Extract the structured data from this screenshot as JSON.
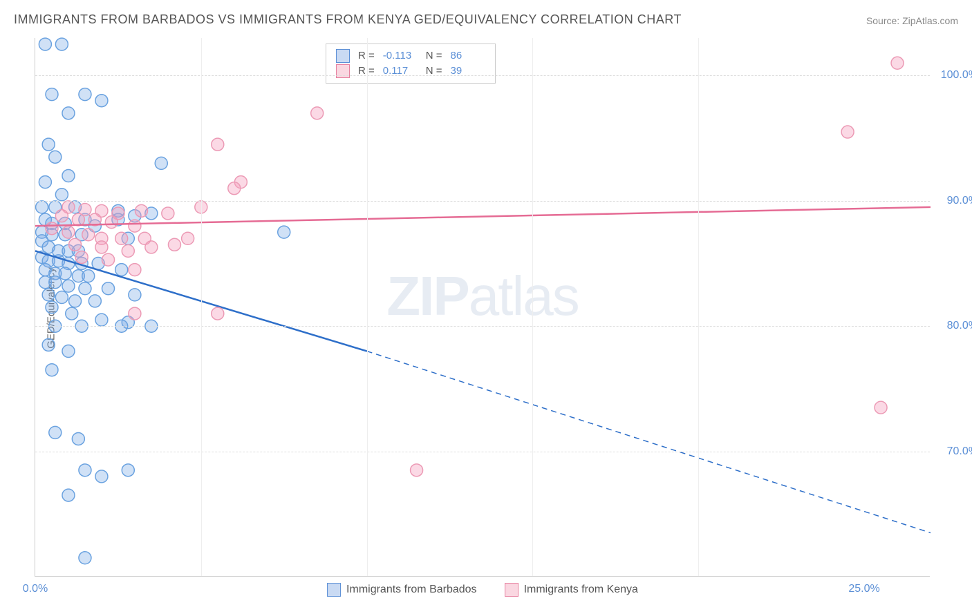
{
  "title": "IMMIGRANTS FROM BARBADOS VS IMMIGRANTS FROM KENYA GED/EQUIVALENCY CORRELATION CHART",
  "source": "Source: ZipAtlas.com",
  "ylabel": "GED/Equivalency",
  "watermark": {
    "bold": "ZIP",
    "light": "atlas"
  },
  "chart": {
    "type": "scatter",
    "background_color": "#ffffff",
    "grid_color": "#dddddd",
    "axis_color": "#cccccc",
    "xlim": [
      0,
      27
    ],
    "ylim": [
      60,
      103
    ],
    "yticks": [
      {
        "v": 70,
        "label": "70.0%"
      },
      {
        "v": 80,
        "label": "80.0%"
      },
      {
        "v": 90,
        "label": "90.0%"
      },
      {
        "v": 100,
        "label": "100.0%"
      }
    ],
    "xticks": [
      {
        "v": 0,
        "label": "0.0%"
      },
      {
        "v": 25,
        "label": "25.0%"
      }
    ],
    "xgrid_minor": [
      5,
      10,
      15,
      20
    ],
    "series": [
      {
        "name": "Immigrants from Barbados",
        "color_fill": "rgba(120,170,230,0.35)",
        "color_stroke": "#6aa2e0",
        "marker_radius": 9,
        "R": "-0.113",
        "N": "86",
        "trend": {
          "x1": 0,
          "y1": 86.0,
          "x2_solid": 10,
          "y2_solid": 78.0,
          "x2": 27,
          "y2": 63.5,
          "color": "#2e6fc9",
          "width": 2.5
        },
        "points": [
          [
            0.3,
            102.5
          ],
          [
            0.8,
            102.5
          ],
          [
            0.5,
            98.5
          ],
          [
            1.5,
            98.5
          ],
          [
            2.0,
            98.0
          ],
          [
            1.0,
            97.0
          ],
          [
            0.4,
            94.5
          ],
          [
            0.6,
            93.5
          ],
          [
            1.0,
            92.0
          ],
          [
            0.3,
            91.5
          ],
          [
            0.8,
            90.5
          ],
          [
            3.8,
            93.0
          ],
          [
            0.2,
            89.5
          ],
          [
            0.6,
            89.5
          ],
          [
            1.2,
            89.5
          ],
          [
            0.3,
            88.5
          ],
          [
            0.5,
            88.2
          ],
          [
            0.9,
            88.2
          ],
          [
            1.5,
            88.5
          ],
          [
            0.2,
            87.5
          ],
          [
            0.5,
            87.3
          ],
          [
            0.9,
            87.3
          ],
          [
            1.4,
            87.3
          ],
          [
            2.5,
            89.2
          ],
          [
            2.5,
            88.5
          ],
          [
            3.0,
            88.8
          ],
          [
            3.5,
            89.0
          ],
          [
            0.2,
            86.8
          ],
          [
            0.4,
            86.3
          ],
          [
            0.7,
            86.0
          ],
          [
            1.0,
            86.0
          ],
          [
            1.3,
            86.0
          ],
          [
            1.8,
            88.0
          ],
          [
            7.5,
            87.5
          ],
          [
            0.2,
            85.5
          ],
          [
            0.4,
            85.2
          ],
          [
            0.7,
            85.2
          ],
          [
            1.0,
            85.0
          ],
          [
            1.4,
            85.0
          ],
          [
            1.9,
            85.0
          ],
          [
            2.8,
            87.0
          ],
          [
            0.3,
            84.5
          ],
          [
            0.6,
            84.2
          ],
          [
            0.9,
            84.2
          ],
          [
            1.3,
            84.0
          ],
          [
            1.6,
            84.0
          ],
          [
            0.3,
            83.5
          ],
          [
            0.6,
            83.5
          ],
          [
            1.0,
            83.2
          ],
          [
            1.5,
            83.0
          ],
          [
            2.2,
            83.0
          ],
          [
            2.6,
            84.5
          ],
          [
            0.4,
            82.5
          ],
          [
            0.8,
            82.3
          ],
          [
            1.2,
            82.0
          ],
          [
            1.8,
            82.0
          ],
          [
            3.0,
            82.5
          ],
          [
            0.5,
            81.5
          ],
          [
            1.1,
            81.0
          ],
          [
            2.0,
            80.5
          ],
          [
            2.8,
            80.3
          ],
          [
            0.6,
            80.0
          ],
          [
            1.4,
            80.0
          ],
          [
            2.6,
            80.0
          ],
          [
            3.5,
            80.0
          ],
          [
            0.4,
            78.5
          ],
          [
            1.0,
            78.0
          ],
          [
            0.5,
            76.5
          ],
          [
            0.6,
            71.5
          ],
          [
            1.3,
            71.0
          ],
          [
            1.5,
            68.5
          ],
          [
            2.0,
            68.0
          ],
          [
            2.8,
            68.5
          ],
          [
            1.0,
            66.5
          ],
          [
            1.5,
            61.5
          ]
        ]
      },
      {
        "name": "Immigrants from Kenya",
        "color_fill": "rgba(245,160,190,0.40)",
        "color_stroke": "#ec9ab5",
        "marker_radius": 9,
        "R": "0.117",
        "N": "39",
        "trend": {
          "x1": 0,
          "y1": 88.0,
          "x2_solid": 27,
          "y2_solid": 89.5,
          "x2": 27,
          "y2": 89.5,
          "color": "#e56b94",
          "width": 2.5
        },
        "points": [
          [
            26.0,
            101.0
          ],
          [
            24.5,
            95.5
          ],
          [
            8.5,
            97.0
          ],
          [
            5.5,
            94.5
          ],
          [
            6.2,
            91.5
          ],
          [
            6.0,
            91.0
          ],
          [
            1.0,
            89.5
          ],
          [
            1.5,
            89.3
          ],
          [
            2.0,
            89.2
          ],
          [
            2.5,
            89.0
          ],
          [
            3.2,
            89.2
          ],
          [
            4.0,
            89.0
          ],
          [
            5.0,
            89.5
          ],
          [
            0.8,
            88.8
          ],
          [
            1.3,
            88.5
          ],
          [
            1.8,
            88.5
          ],
          [
            2.3,
            88.3
          ],
          [
            3.0,
            88.0
          ],
          [
            0.5,
            87.8
          ],
          [
            1.0,
            87.5
          ],
          [
            1.6,
            87.3
          ],
          [
            2.0,
            87.0
          ],
          [
            2.6,
            87.0
          ],
          [
            3.3,
            87.0
          ],
          [
            1.2,
            86.5
          ],
          [
            2.0,
            86.3
          ],
          [
            2.8,
            86.0
          ],
          [
            3.5,
            86.3
          ],
          [
            4.2,
            86.5
          ],
          [
            4.6,
            87.0
          ],
          [
            1.4,
            85.5
          ],
          [
            2.2,
            85.3
          ],
          [
            3.0,
            84.5
          ],
          [
            3.0,
            81.0
          ],
          [
            5.5,
            81.0
          ],
          [
            25.5,
            73.5
          ],
          [
            11.5,
            68.5
          ]
        ]
      }
    ],
    "legend_top": {
      "rows": [
        {
          "swatch": "blue",
          "r_label": "R =",
          "r_val": "-0.113",
          "n_label": "N =",
          "n_val": "86"
        },
        {
          "swatch": "pink",
          "r_label": "R =",
          "r_val": "0.117",
          "n_label": "N =",
          "n_val": "39"
        }
      ]
    },
    "legend_bottom": [
      {
        "swatch": "blue",
        "label": "Immigrants from Barbados"
      },
      {
        "swatch": "pink",
        "label": "Immigrants from Kenya"
      }
    ],
    "tick_fontsize": 16,
    "tick_color": "#5b8fd6",
    "title_fontsize": 18,
    "title_color": "#555555"
  }
}
